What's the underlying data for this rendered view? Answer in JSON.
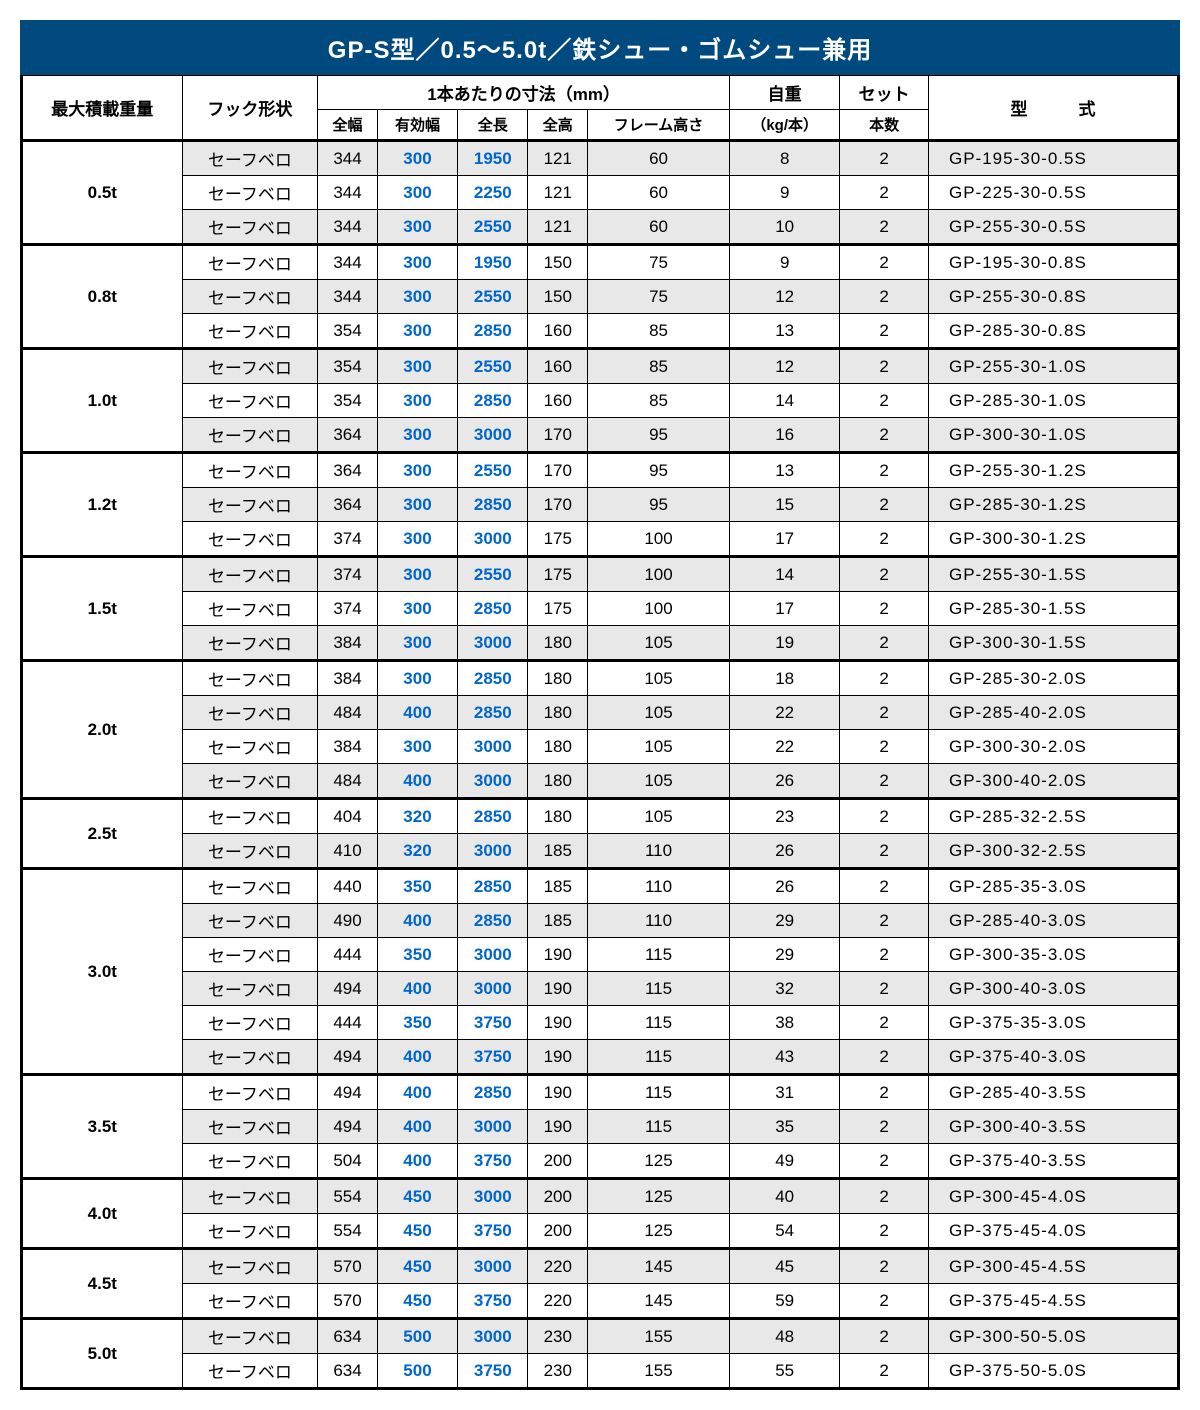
{
  "title": "GP-S型／0.5～5.0t／鉄シュー・ゴムシュー兼用",
  "headers": {
    "maxLoad": "最大積載重量",
    "hookShape": "フック形状",
    "dimensionsGroup": "1本あたりの寸法（mm）",
    "fullWidth": "全幅",
    "effectiveWidth": "有効幅",
    "fullLength": "全長",
    "fullHeight": "全高",
    "frameHeight": "フレーム高さ",
    "selfWeight": "自重",
    "selfWeightUnit": "（kg/本）",
    "setCount": "セット",
    "setCountUnit": "本数",
    "model": "型　　　式"
  },
  "hookLabel": "セーフベロ",
  "groups": [
    {
      "weight": "0.5t",
      "rows": [
        {
          "fw": "344",
          "ew": "300",
          "fl": "1950",
          "fh": "121",
          "frh": "60",
          "sw": "8",
          "sc": "2",
          "model": "GP-195-30-0.5S"
        },
        {
          "fw": "344",
          "ew": "300",
          "fl": "2250",
          "fh": "121",
          "frh": "60",
          "sw": "9",
          "sc": "2",
          "model": "GP-225-30-0.5S"
        },
        {
          "fw": "344",
          "ew": "300",
          "fl": "2550",
          "fh": "121",
          "frh": "60",
          "sw": "10",
          "sc": "2",
          "model": "GP-255-30-0.5S"
        }
      ]
    },
    {
      "weight": "0.8t",
      "rows": [
        {
          "fw": "344",
          "ew": "300",
          "fl": "1950",
          "fh": "150",
          "frh": "75",
          "sw": "9",
          "sc": "2",
          "model": "GP-195-30-0.8S"
        },
        {
          "fw": "344",
          "ew": "300",
          "fl": "2550",
          "fh": "150",
          "frh": "75",
          "sw": "12",
          "sc": "2",
          "model": "GP-255-30-0.8S"
        },
        {
          "fw": "354",
          "ew": "300",
          "fl": "2850",
          "fh": "160",
          "frh": "85",
          "sw": "13",
          "sc": "2",
          "model": "GP-285-30-0.8S"
        }
      ]
    },
    {
      "weight": "1.0t",
      "rows": [
        {
          "fw": "354",
          "ew": "300",
          "fl": "2550",
          "fh": "160",
          "frh": "85",
          "sw": "12",
          "sc": "2",
          "model": "GP-255-30-1.0S"
        },
        {
          "fw": "354",
          "ew": "300",
          "fl": "2850",
          "fh": "160",
          "frh": "85",
          "sw": "14",
          "sc": "2",
          "model": "GP-285-30-1.0S"
        },
        {
          "fw": "364",
          "ew": "300",
          "fl": "3000",
          "fh": "170",
          "frh": "95",
          "sw": "16",
          "sc": "2",
          "model": "GP-300-30-1.0S"
        }
      ]
    },
    {
      "weight": "1.2t",
      "rows": [
        {
          "fw": "364",
          "ew": "300",
          "fl": "2550",
          "fh": "170",
          "frh": "95",
          "sw": "13",
          "sc": "2",
          "model": "GP-255-30-1.2S"
        },
        {
          "fw": "364",
          "ew": "300",
          "fl": "2850",
          "fh": "170",
          "frh": "95",
          "sw": "15",
          "sc": "2",
          "model": "GP-285-30-1.2S"
        },
        {
          "fw": "374",
          "ew": "300",
          "fl": "3000",
          "fh": "175",
          "frh": "100",
          "sw": "17",
          "sc": "2",
          "model": "GP-300-30-1.2S"
        }
      ]
    },
    {
      "weight": "1.5t",
      "rows": [
        {
          "fw": "374",
          "ew": "300",
          "fl": "2550",
          "fh": "175",
          "frh": "100",
          "sw": "14",
          "sc": "2",
          "model": "GP-255-30-1.5S"
        },
        {
          "fw": "374",
          "ew": "300",
          "fl": "2850",
          "fh": "175",
          "frh": "100",
          "sw": "17",
          "sc": "2",
          "model": "GP-285-30-1.5S"
        },
        {
          "fw": "384",
          "ew": "300",
          "fl": "3000",
          "fh": "180",
          "frh": "105",
          "sw": "19",
          "sc": "2",
          "model": "GP-300-30-1.5S"
        }
      ]
    },
    {
      "weight": "2.0t",
      "rows": [
        {
          "fw": "384",
          "ew": "300",
          "fl": "2850",
          "fh": "180",
          "frh": "105",
          "sw": "18",
          "sc": "2",
          "model": "GP-285-30-2.0S"
        },
        {
          "fw": "484",
          "ew": "400",
          "fl": "2850",
          "fh": "180",
          "frh": "105",
          "sw": "22",
          "sc": "2",
          "model": "GP-285-40-2.0S"
        },
        {
          "fw": "384",
          "ew": "300",
          "fl": "3000",
          "fh": "180",
          "frh": "105",
          "sw": "22",
          "sc": "2",
          "model": "GP-300-30-2.0S"
        },
        {
          "fw": "484",
          "ew": "400",
          "fl": "3000",
          "fh": "180",
          "frh": "105",
          "sw": "26",
          "sc": "2",
          "model": "GP-300-40-2.0S"
        }
      ]
    },
    {
      "weight": "2.5t",
      "rows": [
        {
          "fw": "404",
          "ew": "320",
          "fl": "2850",
          "fh": "180",
          "frh": "105",
          "sw": "23",
          "sc": "2",
          "model": "GP-285-32-2.5S"
        },
        {
          "fw": "410",
          "ew": "320",
          "fl": "3000",
          "fh": "185",
          "frh": "110",
          "sw": "26",
          "sc": "2",
          "model": "GP-300-32-2.5S"
        }
      ]
    },
    {
      "weight": "3.0t",
      "rows": [
        {
          "fw": "440",
          "ew": "350",
          "fl": "2850",
          "fh": "185",
          "frh": "110",
          "sw": "26",
          "sc": "2",
          "model": "GP-285-35-3.0S"
        },
        {
          "fw": "490",
          "ew": "400",
          "fl": "2850",
          "fh": "185",
          "frh": "110",
          "sw": "29",
          "sc": "2",
          "model": "GP-285-40-3.0S"
        },
        {
          "fw": "444",
          "ew": "350",
          "fl": "3000",
          "fh": "190",
          "frh": "115",
          "sw": "29",
          "sc": "2",
          "model": "GP-300-35-3.0S"
        },
        {
          "fw": "494",
          "ew": "400",
          "fl": "3000",
          "fh": "190",
          "frh": "115",
          "sw": "32",
          "sc": "2",
          "model": "GP-300-40-3.0S"
        },
        {
          "fw": "444",
          "ew": "350",
          "fl": "3750",
          "fh": "190",
          "frh": "115",
          "sw": "38",
          "sc": "2",
          "model": "GP-375-35-3.0S"
        },
        {
          "fw": "494",
          "ew": "400",
          "fl": "3750",
          "fh": "190",
          "frh": "115",
          "sw": "43",
          "sc": "2",
          "model": "GP-375-40-3.0S"
        }
      ]
    },
    {
      "weight": "3.5t",
      "rows": [
        {
          "fw": "494",
          "ew": "400",
          "fl": "2850",
          "fh": "190",
          "frh": "115",
          "sw": "31",
          "sc": "2",
          "model": "GP-285-40-3.5S"
        },
        {
          "fw": "494",
          "ew": "400",
          "fl": "3000",
          "fh": "190",
          "frh": "115",
          "sw": "35",
          "sc": "2",
          "model": "GP-300-40-3.5S"
        },
        {
          "fw": "504",
          "ew": "400",
          "fl": "3750",
          "fh": "200",
          "frh": "125",
          "sw": "49",
          "sc": "2",
          "model": "GP-375-40-3.5S"
        }
      ]
    },
    {
      "weight": "4.0t",
      "rows": [
        {
          "fw": "554",
          "ew": "450",
          "fl": "3000",
          "fh": "200",
          "frh": "125",
          "sw": "40",
          "sc": "2",
          "model": "GP-300-45-4.0S"
        },
        {
          "fw": "554",
          "ew": "450",
          "fl": "3750",
          "fh": "200",
          "frh": "125",
          "sw": "54",
          "sc": "2",
          "model": "GP-375-45-4.0S"
        }
      ]
    },
    {
      "weight": "4.5t",
      "rows": [
        {
          "fw": "570",
          "ew": "450",
          "fl": "3000",
          "fh": "220",
          "frh": "145",
          "sw": "45",
          "sc": "2",
          "model": "GP-300-45-4.5S"
        },
        {
          "fw": "570",
          "ew": "450",
          "fl": "3750",
          "fh": "220",
          "frh": "145",
          "sw": "59",
          "sc": "2",
          "model": "GP-375-45-4.5S"
        }
      ]
    },
    {
      "weight": "5.0t",
      "rows": [
        {
          "fw": "634",
          "ew": "500",
          "fl": "3000",
          "fh": "230",
          "frh": "155",
          "sw": "48",
          "sc": "2",
          "model": "GP-300-50-5.0S"
        },
        {
          "fw": "634",
          "ew": "500",
          "fl": "3750",
          "fh": "230",
          "frh": "155",
          "sw": "55",
          "sc": "2",
          "model": "GP-375-50-5.0S"
        }
      ]
    }
  ],
  "colors": {
    "headerBg": "#004a7f",
    "headerText": "#ffffff",
    "blueText": "#0066cc",
    "altRowBg": "#e8e8e8",
    "border": "#000000"
  }
}
